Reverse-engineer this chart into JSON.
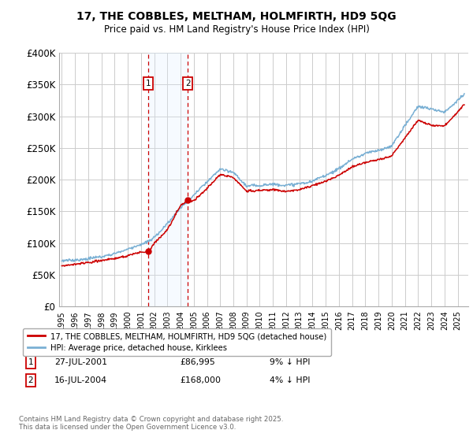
{
  "title": "17, THE COBBLES, MELTHAM, HOLMFIRTH, HD9 5QG",
  "subtitle": "Price paid vs. HM Land Registry's House Price Index (HPI)",
  "ylim": [
    0,
    400000
  ],
  "yticks": [
    0,
    50000,
    100000,
    150000,
    200000,
    250000,
    300000,
    350000,
    400000
  ],
  "ytick_labels": [
    "£0",
    "£50K",
    "£100K",
    "£150K",
    "£200K",
    "£250K",
    "£300K",
    "£350K",
    "£400K"
  ],
  "xlim_start": 1994.8,
  "xlim_end": 2025.8,
  "background_color": "#ffffff",
  "grid_color": "#cccccc",
  "transaction1_date": "27-JUL-2001",
  "transaction1_year": 2001.56,
  "transaction1_price": 86995,
  "transaction1_label": "1",
  "transaction1_hpi_diff": "9% ↓ HPI",
  "transaction2_date": "16-JUL-2004",
  "transaction2_year": 2004.54,
  "transaction2_price": 168000,
  "transaction2_label": "2",
  "transaction2_hpi_diff": "4% ↓ HPI",
  "legend_house_label": "17, THE COBBLES, MELTHAM, HOLMFIRTH, HD9 5QG (detached house)",
  "legend_hpi_label": "HPI: Average price, detached house, Kirklees",
  "copyright_text": "Contains HM Land Registry data © Crown copyright and database right 2025.\nThis data is licensed under the Open Government Licence v3.0.",
  "house_color": "#cc0000",
  "hpi_color": "#7ab0d4",
  "marker_box_color": "#cc0000",
  "shade_color": "#ddeeff",
  "dashed_color": "#cc0000",
  "hpi_knots_x": [
    1995,
    1996,
    1997,
    1998,
    1999,
    2000,
    2001,
    2002,
    2003,
    2004,
    2005,
    2006,
    2007,
    2008,
    2009,
    2010,
    2011,
    2012,
    2013,
    2014,
    2015,
    2016,
    2017,
    2018,
    2019,
    2020,
    2021,
    2022,
    2023,
    2024,
    2025.5
  ],
  "hpi_knots_y": [
    72000,
    73500,
    76000,
    79000,
    83000,
    89000,
    96000,
    108000,
    130000,
    155000,
    175000,
    195000,
    215000,
    210000,
    188000,
    190000,
    192000,
    191000,
    193000,
    198000,
    208000,
    218000,
    233000,
    243000,
    248000,
    255000,
    285000,
    315000,
    310000,
    305000,
    335000
  ],
  "house_knots_x": [
    1995,
    1996,
    1997,
    1998,
    1999,
    2000,
    2001.0,
    2001.56,
    2002,
    2003,
    2004.0,
    2004.54,
    2005,
    2006,
    2007,
    2008,
    2009,
    2010,
    2011,
    2012,
    2013,
    2014,
    2015,
    2016,
    2017,
    2018,
    2019,
    2020,
    2021,
    2022,
    2023,
    2024,
    2025.5
  ],
  "house_knots_y": [
    64000,
    65500,
    68000,
    71000,
    74500,
    80000,
    86000,
    86995,
    100000,
    122000,
    160000,
    168000,
    168000,
    188000,
    210000,
    205000,
    182000,
    183000,
    184000,
    182000,
    184000,
    190000,
    198000,
    207000,
    221000,
    229000,
    234000,
    240000,
    268000,
    295000,
    287000,
    285000,
    318000
  ]
}
